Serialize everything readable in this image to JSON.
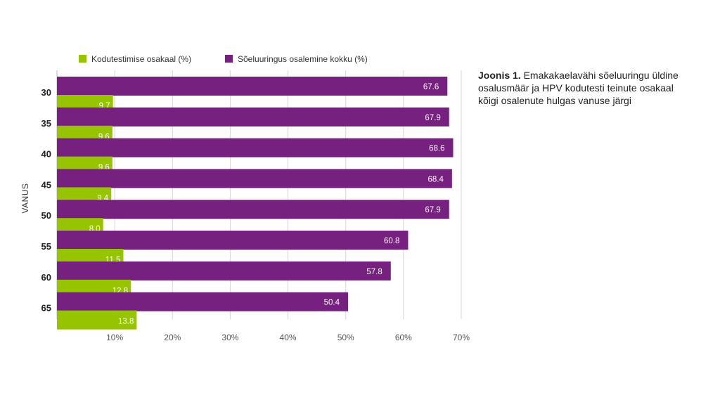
{
  "caption": {
    "label": "Joonis 1.",
    "text": "Emakakaelavähi sõeluuringu üldine osalusmäär ja HPV kodutesti teinute osakaal  kõigi osalenute hulgas vanuse järgi"
  },
  "chart_data": {
    "type": "bar",
    "orientation": "horizontal",
    "categories": [
      "30",
      "35",
      "40",
      "45",
      "50",
      "55",
      "60",
      "65"
    ],
    "ylabel": "VANUS",
    "xlabel": "",
    "xlim": [
      0,
      70
    ],
    "xticks": [
      "10%",
      "20%",
      "30%",
      "40%",
      "50%",
      "60%",
      "70%"
    ],
    "grid": true,
    "legend_position": "top-left",
    "series": [
      {
        "name": "Sõeluuringus osalemine kokku (%)",
        "color": "#76207f",
        "values": [
          67.6,
          67.9,
          68.6,
          68.4,
          67.9,
          60.8,
          57.8,
          50.4
        ],
        "labels": [
          "67.6",
          "67.9",
          "68.6",
          "68.4",
          "67.9",
          "60.8",
          "57.8",
          "50.4"
        ]
      },
      {
        "name": "Kodutestimise osakaal (%)",
        "color": "#97c400",
        "values": [
          9.7,
          9.6,
          9.6,
          9.4,
          8.0,
          11.5,
          12.8,
          13.8
        ],
        "labels": [
          "9.7",
          "9.6",
          "9.6",
          "9.4",
          "8.0",
          "11.5",
          "12.8",
          "13.8"
        ]
      }
    ],
    "legend_order": [
      1,
      0
    ]
  }
}
